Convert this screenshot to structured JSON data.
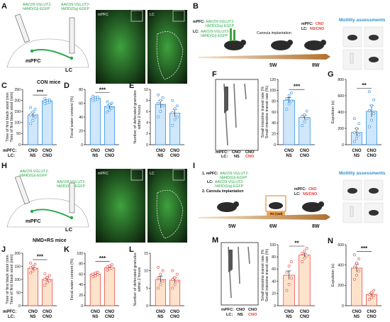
{
  "panels": {
    "A": {
      "letter": "A",
      "virus_top": "AAV2/9-VGLUT2-",
      "virus_top2": "hM4D(Gi)-EGFP",
      "virus_side": "AAV2/9-VGLUT2-",
      "virus_side2": "hM3D(Gq)-EGFP",
      "region1": "mPFC",
      "region2": "LC",
      "mice": "CON mice",
      "img1": "mPFC",
      "img2": "LC"
    },
    "B": {
      "letter": "B",
      "inj1_pre": "mPFC: ",
      "inj1": "AAV2/9-VGLUT2-",
      "inj1b": "hM3D(Gq)-EGFP",
      "inj2_pre": "LC: ",
      "inj2": "AAV2/9-VGLUT2-",
      "inj2b": "hM4D(Gi)-EGFP",
      "step": "Cannula implantation",
      "treat1_pre": "mPFC: ",
      "treat1": "CNO",
      "treat2_pre": "LC: ",
      "treat2": "NS/CNO",
      "wk1": "5W",
      "wk2": "8W",
      "assess": "Motility assessments"
    },
    "H": {
      "letter": "H",
      "virus_top": "AAV2/9-VGLUT2-",
      "virus_top2": "hM4D(Gi)-EGFP",
      "virus_side": "AAV2/9-VGLUT2-",
      "virus_side2": "hM3D(Gq)-EGFP",
      "region1": "mPFC",
      "region2": "LC",
      "mice": "NMD+RS mice",
      "img1": "mPFC",
      "img2": "LC"
    },
    "I": {
      "letter": "I",
      "step1_pre": "1. mPFC: ",
      "step1": "AAV2/9-VGLUT2-",
      "step1b": "hM4D(Gi)-EGFP",
      "step1c_pre": "LC: ",
      "step1c": "AAV2/9-VGLUT2-",
      "step1d": "hM3D(Gq)-EGFP",
      "step2": "2. Cannula implantation",
      "rs": "RS (14d)",
      "treat1_pre": "mPFC: ",
      "treat1": "CNO",
      "treat2_pre": "LC: ",
      "treat2": "NS/CNO",
      "wk1": "5W",
      "wk2": "6W",
      "wk3": "8W",
      "assess": "Motility assessments"
    },
    "F": {
      "letter": "F",
      "row1_label": "mPFC:",
      "row1": [
        "CNO",
        "CNO"
      ],
      "row2_label": "LC:",
      "row2": [
        "NS",
        "CNO"
      ]
    },
    "M": {
      "letter": "M",
      "row1_label": "mPFC:",
      "row1": [
        "CNO",
        "CNO"
      ],
      "row2_label": "LC:",
      "row2": [
        "NS",
        "CNO"
      ]
    }
  },
  "group_labels": {
    "mpfc_label": "mPFC:",
    "lc_label": "LC:"
  },
  "chart_data": [
    {
      "id": "C",
      "type": "bar",
      "ylabel": "Time of first black stool (min)",
      "ylim": [
        0,
        250
      ],
      "yticks": [
        0,
        50,
        100,
        150,
        200,
        250
      ],
      "categories": [
        {
          "top": "CNO",
          "bottom": "NS"
        },
        {
          "top": "CNO",
          "bottom": "CNO"
        }
      ],
      "values": [
        135,
        198
      ],
      "points": [
        [
          95,
          110,
          125,
          135,
          148,
          160,
          168
        ],
        [
          186,
          190,
          193,
          196,
          200,
          203,
          208
        ]
      ],
      "errors": [
        12,
        5
      ],
      "sig": "***",
      "color_main": "#1e88e5",
      "fill": "#cfe6fb"
    },
    {
      "id": "D",
      "type": "bar",
      "ylabel": "Fecal water content (%)",
      "ylim": [
        0,
        80
      ],
      "yticks": [
        0,
        20,
        40,
        60,
        80
      ],
      "categories": [
        {
          "top": "CNO",
          "bottom": "NS"
        },
        {
          "top": "CNO",
          "bottom": "CNO"
        }
      ],
      "values": [
        67,
        55
      ],
      "points": [
        [
          64,
          65,
          66,
          67,
          68,
          69,
          70
        ],
        [
          47,
          50,
          53,
          55,
          58,
          60,
          62
        ]
      ],
      "errors": [
        1.5,
        3
      ],
      "sig": "***",
      "color_main": "#1e88e5",
      "fill": "#cfe6fb"
    },
    {
      "id": "E",
      "type": "bar",
      "ylabel": "Number of defecated granules within 2 hours",
      "ylim": [
        0,
        10
      ],
      "yticks": [
        0,
        2,
        4,
        6,
        8,
        10
      ],
      "categories": [
        {
          "top": "CNO",
          "bottom": "NS"
        },
        {
          "top": "CNO",
          "bottom": "CNO"
        }
      ],
      "values": [
        7.3,
        5.7
      ],
      "points": [
        [
          5,
          6,
          7,
          7.5,
          8,
          8.5,
          9
        ],
        [
          3.5,
          4.5,
          5,
          5.8,
          6.5,
          7,
          8
        ]
      ],
      "errors": [
        0.7,
        0.7
      ],
      "sig": "",
      "color_main": "#1e88e5",
      "fill": "#cfe6fb"
    },
    {
      "id": "F2",
      "type": "bar",
      "ylabel": "Small intestine transit rate (%)",
      "ylim": [
        0,
        120
      ],
      "yticks": [
        0,
        20,
        40,
        60,
        80,
        100,
        120
      ],
      "categories": [
        {
          "top": "CNO",
          "bottom": "NS"
        },
        {
          "top": "CNO",
          "bottom": "CNO"
        }
      ],
      "values": [
        82,
        50
      ],
      "points": [
        [
          65,
          75,
          80,
          85,
          90,
          95
        ],
        [
          35,
          42,
          48,
          52,
          55,
          62
        ]
      ],
      "errors": [
        5,
        4
      ],
      "sig": "***",
      "color_main": "#1e88e5",
      "fill": "#cfe6fb"
    },
    {
      "id": "G",
      "type": "bar",
      "ylabel": "Expulsion (s)",
      "ylim": [
        0,
        800
      ],
      "yticks": [
        0,
        200,
        400,
        600,
        800
      ],
      "categories": [
        {
          "top": "CNO",
          "bottom": "NS"
        },
        {
          "top": "CNO",
          "bottom": "CNO"
        }
      ],
      "values": [
        150,
        410
      ],
      "points": [
        [
          40,
          80,
          120,
          150,
          200,
          260,
          320
        ],
        [
          220,
          300,
          380,
          420,
          480,
          550,
          650
        ]
      ],
      "errors": [
        45,
        70
      ],
      "sig": "**",
      "color_main": "#1e88e5",
      "fill": "#cfe6fb"
    },
    {
      "id": "J",
      "type": "bar",
      "ylabel": "Time of first black stool (min)",
      "ylim": [
        0,
        200
      ],
      "yticks": [
        0,
        50,
        100,
        150,
        200
      ],
      "categories": [
        {
          "top": "CNO",
          "bottom": "NS"
        },
        {
          "top": "CNO",
          "bottom": "CNO"
        }
      ],
      "values": [
        143,
        100
      ],
      "points": [
        [
          125,
          132,
          140,
          145,
          150,
          158,
          162
        ],
        [
          78,
          88,
          95,
          100,
          108,
          115,
          122
        ]
      ],
      "errors": [
        5,
        6
      ],
      "sig": "***",
      "color_main": "#e53935",
      "fill": "#fde3cc"
    },
    {
      "id": "K",
      "type": "bar",
      "ylabel": "Fecal water content (%)",
      "ylim": [
        0,
        100
      ],
      "yticks": [
        0,
        20,
        40,
        60,
        80,
        100
      ],
      "categories": [
        {
          "top": "CNO",
          "bottom": "NS"
        },
        {
          "top": "CNO",
          "bottom": "CNO"
        }
      ],
      "values": [
        60,
        72
      ],
      "points": [
        [
          55,
          57,
          59,
          60,
          62,
          64
        ],
        [
          68,
          70,
          72,
          74,
          76,
          78
        ]
      ],
      "errors": [
        2,
        2
      ],
      "sig": "***",
      "color_main": "#e53935",
      "fill": "#fde3cc"
    },
    {
      "id": "L",
      "type": "bar",
      "ylabel": "Number of defecated granules within 2 hours",
      "ylim": [
        0,
        15
      ],
      "yticks": [
        0,
        5,
        10,
        15
      ],
      "categories": [
        {
          "top": "CNO",
          "bottom": "NS"
        },
        {
          "top": "CNO",
          "bottom": "CNO"
        }
      ],
      "values": [
        7.5,
        7.3
      ],
      "points": [
        [
          5,
          6,
          7,
          8,
          9,
          10,
          11
        ],
        [
          5,
          6,
          7,
          7.5,
          8,
          9,
          10
        ]
      ],
      "errors": [
        0.9,
        0.8
      ],
      "sig": "",
      "color_main": "#e53935",
      "fill": "#fde3cc"
    },
    {
      "id": "M2",
      "type": "bar",
      "ylabel": "Small intestine transit rate (%)",
      "ylim": [
        0,
        100
      ],
      "yticks": [
        0,
        20,
        40,
        60,
        80,
        100
      ],
      "categories": [
        {
          "top": "CNO",
          "bottom": "NS"
        },
        {
          "top": "CNO",
          "bottom": "CNO"
        }
      ],
      "values": [
        50,
        83
      ],
      "points": [
        [
          25,
          35,
          45,
          55,
          65,
          72
        ],
        [
          72,
          78,
          82,
          86,
          90,
          94
        ]
      ],
      "errors": [
        7,
        3
      ],
      "sig": "**",
      "color_main": "#e53935",
      "fill": "#fde3cc"
    },
    {
      "id": "N",
      "type": "bar",
      "ylabel": "Expulsion (s)",
      "ylim": [
        0,
        600
      ],
      "yticks": [
        0,
        200,
        400,
        600
      ],
      "categories": [
        {
          "top": "CNO",
          "bottom": "NS"
        },
        {
          "top": "CNO",
          "bottom": "CNO"
        }
      ],
      "values": [
        370,
        110
      ],
      "points": [
        [
          260,
          300,
          340,
          380,
          420,
          460,
          500
        ],
        [
          60,
          80,
          100,
          110,
          130,
          150
        ]
      ],
      "errors": [
        40,
        15
      ],
      "sig": "***",
      "color_main": "#e53935",
      "fill": "#fde3cc"
    }
  ]
}
